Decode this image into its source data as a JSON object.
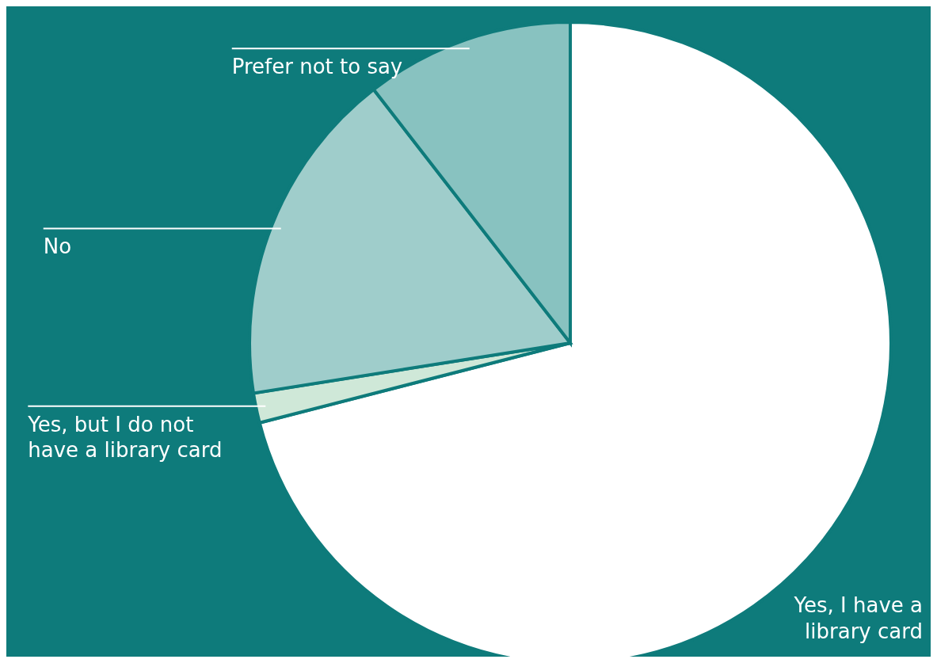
{
  "chart_data": {
    "type": "pie",
    "categories": [
      "Yes, I have a library card",
      "Yes, but I do not have a library card",
      "No",
      "Prefer not to say"
    ],
    "values": [
      71,
      1.5,
      17,
      10.5
    ],
    "colors": [
      "#ffffff",
      "#cfe8d8",
      "#9fcdcb",
      "#88c2c0"
    ]
  }
}
